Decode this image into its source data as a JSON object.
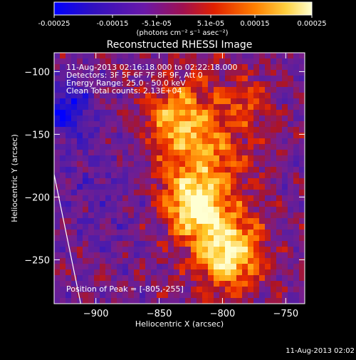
{
  "colorbar": {
    "ticks": [
      "-0.00025",
      "-0.00015",
      "-5.1e-05",
      "5.1e-05",
      "0.00015",
      "0.00025"
    ],
    "units": "(photons cm⁻² s⁻¹ asec⁻²)"
  },
  "footer": {
    "timestamp": "11-Aug-2013 02:02"
  },
  "chart_data": {
    "type": "heatmap",
    "title": "Reconstructed RHESSI Image",
    "xlabel": "Heliocentric X (arcsec)",
    "ylabel": "Heliocentric Y (arcsec)",
    "xlim": [
      -933,
      -735
    ],
    "ylim": [
      -285,
      -85
    ],
    "x_ticks": [
      -900,
      -850,
      -800,
      -750
    ],
    "y_ticks": [
      -100,
      -150,
      -200,
      -250
    ],
    "x_tick_labels": [
      "−900",
      "−850",
      "−800",
      "−750"
    ],
    "y_tick_labels": [
      "−100",
      "−150",
      "−200",
      "−250"
    ],
    "value_range": [
      -0.00025,
      0.00025
    ],
    "colormap": [
      "#0000ff",
      "#4b0fa8",
      "#7a1aa0",
      "#b81030",
      "#ff4000",
      "#ffa000",
      "#ffff90",
      "#ffffff"
    ],
    "annotations": [
      "11-Aug-2013 02:16:18.000 to 02:22:18.000",
      "Detectors: 3F 5F 6F 7F 8F 9F, Att 0",
      "Energy Range: 25.0 - 50.0 keV",
      "Clean    Total counts: 2.13E+04"
    ],
    "peak_label": "Position of Peak = [-805,-255]",
    "peak": [
      -805,
      -255
    ],
    "limb_line": [
      [
        -933,
        -182
      ],
      [
        -912,
        -285
      ]
    ]
  }
}
